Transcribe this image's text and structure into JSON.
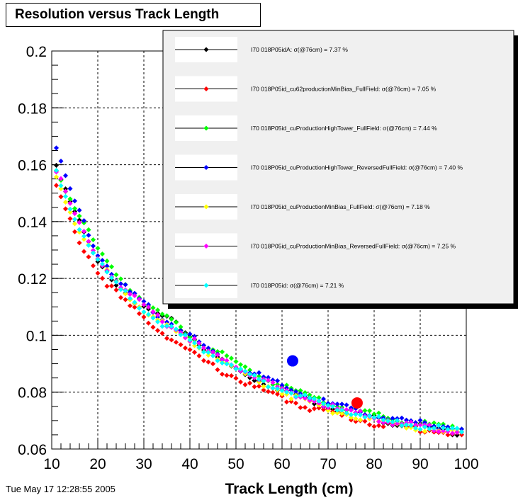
{
  "title": "Resolution versus Track Length",
  "timestamp": "Tue May 17 12:28:55 2005",
  "chart_data": {
    "type": "scatter",
    "title": "Resolution versus Track Length",
    "xlabel": "Track Length (cm)",
    "ylabel": "",
    "xlim": [
      10,
      100
    ],
    "ylim": [
      0.06,
      0.2
    ],
    "x_ticks": [
      "10",
      "20",
      "30",
      "40",
      "50",
      "60",
      "70",
      "80",
      "90",
      "100"
    ],
    "y_ticks": [
      "0.06",
      "0.08",
      "0.1",
      "0.12",
      "0.14",
      "0.16",
      "0.18",
      "0.2"
    ],
    "grid": true,
    "legend_position": "top-right",
    "series": [
      {
        "name": "I70   018P05idA:   σ(@76cm) =  7.37 %",
        "color": "#000000",
        "resolution_at_76cm_percent": 7.37,
        "x": [
          11,
          15,
          20,
          25,
          30,
          35,
          40,
          45,
          50,
          55,
          60,
          65,
          70,
          75,
          80,
          85,
          90,
          95,
          99
        ],
        "y": [
          0.16,
          0.143,
          0.125,
          0.117,
          0.109,
          0.106,
          0.1,
          0.093,
          0.088,
          0.084,
          0.081,
          0.078,
          0.075,
          0.073,
          0.071,
          0.069,
          0.068,
          0.066,
          0.066
        ]
      },
      {
        "name": "I70   018P05id_cu62productionMinBias_FullField:          σ(@76cm) =  7.05 %",
        "color": "#ff0000",
        "resolution_at_76cm_percent": 7.05,
        "x": [
          11,
          15,
          20,
          25,
          30,
          35,
          40,
          45,
          50,
          55,
          60,
          65,
          70,
          75,
          80,
          85,
          90,
          95,
          99
        ],
        "y": [
          0.152,
          0.136,
          0.122,
          0.113,
          0.106,
          0.1,
          0.094,
          0.089,
          0.085,
          0.081,
          0.078,
          0.075,
          0.073,
          0.071,
          0.069,
          0.068,
          0.067,
          0.066,
          0.065
        ]
      },
      {
        "name": "I70   018P05id_cuProductionHighTower_FullField:          σ(@76cm) =  7.44 %",
        "color": "#00ff00",
        "resolution_at_76cm_percent": 7.44,
        "x": [
          11,
          15,
          20,
          25,
          30,
          35,
          40,
          45,
          50,
          55,
          60,
          65,
          70,
          75,
          80,
          85,
          90,
          95,
          99
        ],
        "y": [
          0.158,
          0.145,
          0.13,
          0.12,
          0.112,
          0.106,
          0.1,
          0.095,
          0.09,
          0.086,
          0.082,
          0.079,
          0.076,
          0.074,
          0.072,
          0.07,
          0.069,
          0.068,
          0.067
        ]
      },
      {
        "name": "I70   018P05id_cuProductionHighTower_ReversedFullField:          σ(@76cm) =  7.40 %",
        "color": "#0000ff",
        "resolution_at_76cm_percent": 7.4,
        "x": [
          11,
          15,
          20,
          25,
          30,
          35,
          40,
          45,
          50,
          55,
          60,
          65,
          70,
          75,
          80,
          85,
          90,
          95,
          99
        ],
        "y": [
          0.165,
          0.147,
          0.129,
          0.118,
          0.111,
          0.105,
          0.1,
          0.094,
          0.089,
          0.086,
          0.082,
          0.079,
          0.076,
          0.074,
          0.072,
          0.07,
          0.069,
          0.068,
          0.067
        ]
      },
      {
        "name": "I70   018P05id_cuProductionMinBias_FullField:          σ(@76cm) =  7.18 %",
        "color": "#ffff00",
        "resolution_at_76cm_percent": 7.18,
        "x": [
          11,
          15,
          20,
          25,
          30,
          35,
          40,
          45,
          50,
          55,
          60,
          65,
          70,
          75,
          80,
          85,
          90,
          95,
          99
        ],
        "y": [
          0.156,
          0.14,
          0.126,
          0.116,
          0.109,
          0.103,
          0.098,
          0.093,
          0.088,
          0.084,
          0.08,
          0.077,
          0.074,
          0.072,
          0.07,
          0.069,
          0.067,
          0.066,
          0.066
        ]
      },
      {
        "name": "I70   018P05id_cuProductionMinBias_ReversedFullField:          σ(@76cm) =  7.25 %",
        "color": "#ff00ff",
        "resolution_at_76cm_percent": 7.25,
        "x": [
          11,
          15,
          20,
          25,
          30,
          35,
          40,
          45,
          50,
          55,
          60,
          65,
          70,
          75,
          80,
          85,
          90,
          95,
          99
        ],
        "y": [
          0.158,
          0.142,
          0.127,
          0.117,
          0.11,
          0.104,
          0.099,
          0.093,
          0.089,
          0.085,
          0.081,
          0.078,
          0.075,
          0.073,
          0.071,
          0.069,
          0.068,
          0.067,
          0.066
        ]
      },
      {
        "name": "I70   018P05id:   σ(@76cm) =  7.21 %",
        "color": "#00ffff",
        "resolution_at_76cm_percent": 7.21,
        "x": [
          11,
          15,
          20,
          25,
          30,
          35,
          40,
          45,
          50,
          55,
          60,
          65,
          70,
          75,
          80,
          85,
          90,
          95,
          99
        ],
        "y": [
          0.157,
          0.141,
          0.126,
          0.116,
          0.109,
          0.103,
          0.098,
          0.093,
          0.088,
          0.084,
          0.081,
          0.078,
          0.075,
          0.073,
          0.071,
          0.069,
          0.068,
          0.067,
          0.066
        ]
      }
    ],
    "highlight_points": [
      {
        "color": "#0000ff",
        "x": 62.3,
        "y": 0.091
      },
      {
        "color": "#ff0000",
        "x": 76.3,
        "y": 0.0762
      }
    ]
  }
}
